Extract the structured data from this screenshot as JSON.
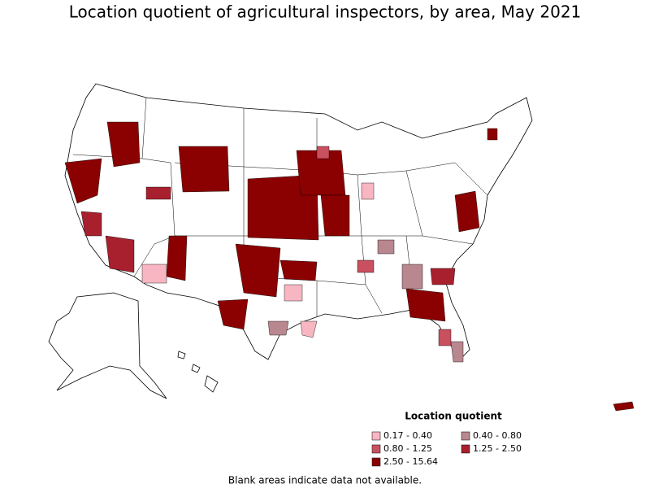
{
  "header": {
    "title": "Location quotient of agricultural inspectors, by area, May 2021"
  },
  "legend": {
    "title": "Location quotient",
    "items": [
      {
        "label": "0.17 - 0.40",
        "color": "#f7b6c2"
      },
      {
        "label": "0.40 - 0.80",
        "color": "#b8878f"
      },
      {
        "label": "0.80 - 1.25",
        "color": "#c8505f"
      },
      {
        "label": "1.25 - 2.50",
        "color": "#a8202e"
      },
      {
        "label": "2.50 - 15.64",
        "color": "#8b0000"
      }
    ]
  },
  "footnote": "Blank areas indicate data not available."
}
